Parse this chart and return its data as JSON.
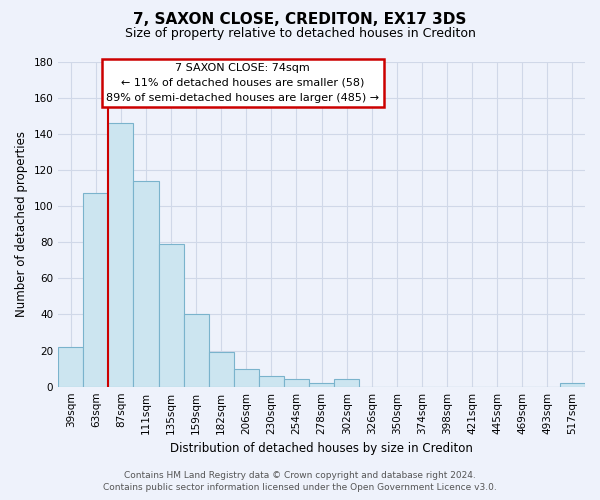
{
  "title": "7, SAXON CLOSE, CREDITON, EX17 3DS",
  "subtitle": "Size of property relative to detached houses in Crediton",
  "xlabel": "Distribution of detached houses by size in Crediton",
  "ylabel": "Number of detached properties",
  "bar_labels": [
    "39sqm",
    "63sqm",
    "87sqm",
    "111sqm",
    "135sqm",
    "159sqm",
    "182sqm",
    "206sqm",
    "230sqm",
    "254sqm",
    "278sqm",
    "302sqm",
    "326sqm",
    "350sqm",
    "374sqm",
    "398sqm",
    "421sqm",
    "445sqm",
    "469sqm",
    "493sqm",
    "517sqm"
  ],
  "bar_values": [
    22,
    107,
    146,
    114,
    79,
    40,
    19,
    10,
    6,
    4,
    2,
    4,
    0,
    0,
    0,
    0,
    0,
    0,
    0,
    0,
    2
  ],
  "bar_color": "#cce5f0",
  "bar_edge_color": "#7ab3cc",
  "vline_x_idx": 1.5,
  "vline_color": "#cc0000",
  "ylim": [
    0,
    180
  ],
  "yticks": [
    0,
    20,
    40,
    60,
    80,
    100,
    120,
    140,
    160,
    180
  ],
  "annotation_title": "7 SAXON CLOSE: 74sqm",
  "annotation_line1": "← 11% of detached houses are smaller (58)",
  "annotation_line2": "89% of semi-detached houses are larger (485) →",
  "annotation_box_color": "#ffffff",
  "annotation_box_edge": "#cc0000",
  "footer_line1": "Contains HM Land Registry data © Crown copyright and database right 2024.",
  "footer_line2": "Contains public sector information licensed under the Open Government Licence v3.0.",
  "background_color": "#eef2fb",
  "grid_color": "#d0d8e8",
  "title_fontsize": 11,
  "subtitle_fontsize": 9,
  "axis_label_fontsize": 8.5,
  "tick_fontsize": 7.5,
  "footer_fontsize": 6.5,
  "annotation_fontsize": 8
}
